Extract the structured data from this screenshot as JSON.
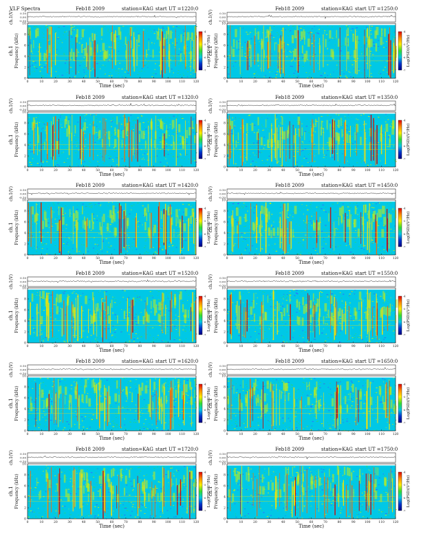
{
  "labels": {
    "titles": [
      "VLF Spectra",
      "",
      "",
      "",
      "",
      "",
      "",
      "",
      "",
      "",
      "",
      ""
    ],
    "dates": [
      "Feb18 2009",
      "Feb18 2009",
      "Feb18 2009",
      "Feb18 2009",
      "Feb18 2009",
      "Feb18 2009",
      "Feb18 2009",
      "Feb18 2009",
      "Feb18 2009",
      "Feb18 2009",
      "Feb18 2009",
      "Feb18 2009"
    ],
    "stations": [
      "station=KAG",
      "station=KAG",
      "station=KAG",
      "station=KAG",
      "station=KAG",
      "station=KAG",
      "station=KAG",
      "station=KAG",
      "station=KAG",
      "station=KAG",
      "station=KAG",
      "station=KAG"
    ],
    "starts": [
      "start UT =1220:0",
      "start UT =1250:0",
      "start UT =1320:0",
      "start UT =1350:0",
      "start UT =1420:0",
      "start UT =1450:0",
      "start UT =1520:0",
      "start UT =1550:0",
      "start UT =1620:0",
      "start UT =1650:0",
      "start UT =1720:0",
      "start UT =1750:0"
    ],
    "ts_ylabel": "ch.1(V)",
    "ts_ticks": [
      "0.10",
      "0.00",
      "-0.10"
    ],
    "spec_ylabel_1": "ch.1",
    "spec_ylabel_2": "Frequency (kHz)",
    "colorbar_label": "Log(PSD)(V²/Hz)",
    "colorbar_ticks": [
      "-4",
      "-5",
      "-6",
      "-7"
    ]
  },
  "colors": {
    "background": "#00c8e6",
    "noise": "#22d488",
    "mid": "#c8ee10",
    "high": "#ffe000",
    "peak": "#ff6600",
    "max": "#d40000",
    "low": "#3366ff",
    "colorbar": [
      "#e00000",
      "#ff8c00",
      "#ffee00",
      "#33dd33",
      "#00c8e6",
      "#0033cc",
      "#000080"
    ]
  },
  "chart_data": [
    {
      "type": "heatmap",
      "station": "KAG",
      "date": "Feb18 2009",
      "start_ut": "1220:0",
      "xlim": [
        0,
        120
      ],
      "ylim": [
        0,
        10
      ],
      "xlabel": "Time (sec)",
      "ylabel": "Frequency (kHz)",
      "xticks": [
        0,
        10,
        20,
        30,
        40,
        50,
        60,
        70,
        80,
        90,
        100,
        110,
        120
      ],
      "yticks": [
        0,
        2,
        4,
        6,
        8,
        10
      ],
      "ts_ylim": [
        -0.1,
        0.1
      ],
      "colorbar_range": [
        -7,
        -4
      ]
    },
    {
      "type": "heatmap",
      "station": "KAG",
      "date": "Feb18 2009",
      "start_ut": "1250:0",
      "xlim": [
        0,
        120
      ],
      "ylim": [
        0,
        10
      ],
      "xlabel": "Time (sec)",
      "ylabel": "Frequency (kHz)",
      "xticks": [
        0,
        10,
        20,
        30,
        40,
        50,
        60,
        70,
        80,
        90,
        100,
        110,
        120
      ],
      "yticks": [
        0,
        2,
        4,
        6,
        8,
        10
      ],
      "ts_ylim": [
        -0.1,
        0.1
      ],
      "colorbar_range": [
        -7,
        -4
      ]
    },
    {
      "type": "heatmap",
      "station": "KAG",
      "date": "Feb18 2009",
      "start_ut": "1320:0",
      "xlim": [
        0,
        120
      ],
      "ylim": [
        0,
        10
      ],
      "xlabel": "Time (sec)",
      "ylabel": "Frequency (kHz)",
      "xticks": [
        0,
        10,
        20,
        30,
        40,
        50,
        60,
        70,
        80,
        90,
        100,
        110,
        120
      ],
      "yticks": [
        0,
        2,
        4,
        6,
        8,
        10
      ],
      "ts_ylim": [
        -0.1,
        0.1
      ],
      "colorbar_range": [
        -7,
        -4
      ]
    },
    {
      "type": "heatmap",
      "station": "KAG",
      "date": "Feb18 2009",
      "start_ut": "1350:0",
      "xlim": [
        0,
        120
      ],
      "ylim": [
        0,
        10
      ],
      "xlabel": "Time (sec)",
      "ylabel": "Frequency (kHz)",
      "xticks": [
        0,
        10,
        20,
        30,
        40,
        50,
        60,
        70,
        80,
        90,
        100,
        110,
        120
      ],
      "yticks": [
        0,
        2,
        4,
        6,
        8,
        10
      ],
      "ts_ylim": [
        -0.1,
        0.1
      ],
      "colorbar_range": [
        -7,
        -4
      ]
    },
    {
      "type": "heatmap",
      "station": "KAG",
      "date": "Feb18 2009",
      "start_ut": "1420:0",
      "xlim": [
        0,
        120
      ],
      "ylim": [
        0,
        10
      ],
      "xlabel": "Time (sec)",
      "ylabel": "Frequency (kHz)",
      "xticks": [
        0,
        10,
        20,
        30,
        40,
        50,
        60,
        70,
        80,
        90,
        100,
        110,
        120
      ],
      "yticks": [
        0,
        2,
        4,
        6,
        8,
        10
      ],
      "ts_ylim": [
        -0.1,
        0.1
      ],
      "colorbar_range": [
        -7,
        -4
      ]
    },
    {
      "type": "heatmap",
      "station": "KAG",
      "date": "Feb18 2009",
      "start_ut": "1450:0",
      "xlim": [
        0,
        120
      ],
      "ylim": [
        0,
        10
      ],
      "xlabel": "Time (sec)",
      "ylabel": "Frequency (kHz)",
      "xticks": [
        0,
        10,
        20,
        30,
        40,
        50,
        60,
        70,
        80,
        90,
        100,
        110,
        120
      ],
      "yticks": [
        0,
        2,
        4,
        6,
        8,
        10
      ],
      "ts_ylim": [
        -0.1,
        0.1
      ],
      "colorbar_range": [
        -7,
        -4
      ]
    },
    {
      "type": "heatmap",
      "station": "KAG",
      "date": "Feb18 2009",
      "start_ut": "1520:0",
      "xlim": [
        0,
        120
      ],
      "ylim": [
        0,
        10
      ],
      "xlabel": "Time (sec)",
      "ylabel": "Frequency (kHz)",
      "xticks": [
        0,
        10,
        20,
        30,
        40,
        50,
        60,
        70,
        80,
        90,
        100,
        110,
        120
      ],
      "yticks": [
        0,
        2,
        4,
        6,
        8,
        10
      ],
      "ts_ylim": [
        -0.1,
        0.1
      ],
      "colorbar_range": [
        -7,
        -4
      ]
    },
    {
      "type": "heatmap",
      "station": "KAG",
      "date": "Feb18 2009",
      "start_ut": "1550:0",
      "xlim": [
        0,
        120
      ],
      "ylim": [
        0,
        10
      ],
      "xlabel": "Time (sec)",
      "ylabel": "Frequency (kHz)",
      "xticks": [
        0,
        10,
        20,
        30,
        40,
        50,
        60,
        70,
        80,
        90,
        100,
        110,
        120
      ],
      "yticks": [
        0,
        2,
        4,
        6,
        8,
        10
      ],
      "ts_ylim": [
        -0.1,
        0.1
      ],
      "colorbar_range": [
        -7,
        -4
      ]
    },
    {
      "type": "heatmap",
      "station": "KAG",
      "date": "Feb18 2009",
      "start_ut": "1620:0",
      "xlim": [
        0,
        120
      ],
      "ylim": [
        0,
        10
      ],
      "xlabel": "Time (sec)",
      "ylabel": "Frequency (kHz)",
      "xticks": [
        0,
        10,
        20,
        30,
        40,
        50,
        60,
        70,
        80,
        90,
        100,
        110,
        120
      ],
      "yticks": [
        0,
        2,
        4,
        6,
        8,
        10
      ],
      "ts_ylim": [
        -0.1,
        0.1
      ],
      "colorbar_range": [
        -7,
        -4
      ]
    },
    {
      "type": "heatmap",
      "station": "KAG",
      "date": "Feb18 2009",
      "start_ut": "1650:0",
      "xlim": [
        0,
        120
      ],
      "ylim": [
        0,
        10
      ],
      "xlabel": "Time (sec)",
      "ylabel": "Frequency (kHz)",
      "xticks": [
        0,
        10,
        20,
        30,
        40,
        50,
        60,
        70,
        80,
        90,
        100,
        110,
        120
      ],
      "yticks": [
        0,
        2,
        4,
        6,
        8,
        10
      ],
      "ts_ylim": [
        -0.1,
        0.1
      ],
      "colorbar_range": [
        -7,
        -4
      ]
    },
    {
      "type": "heatmap",
      "station": "KAG",
      "date": "Feb18 2009",
      "start_ut": "1720:0",
      "xlim": [
        0,
        120
      ],
      "ylim": [
        0,
        10
      ],
      "xlabel": "Time (sec)",
      "ylabel": "Frequency (kHz)",
      "xticks": [
        0,
        10,
        20,
        30,
        40,
        50,
        60,
        70,
        80,
        90,
        100,
        110,
        120
      ],
      "yticks": [
        0,
        2,
        4,
        6,
        8,
        10
      ],
      "ts_ylim": [
        -0.1,
        0.1
      ],
      "colorbar_range": [
        -7,
        -4
      ]
    },
    {
      "type": "heatmap",
      "station": "KAG",
      "date": "Feb18 2009",
      "start_ut": "1750:0",
      "xlim": [
        0,
        120
      ],
      "ylim": [
        0,
        10
      ],
      "xlabel": "Time (sec)",
      "ylabel": "Frequency (kHz)",
      "xticks": [
        0,
        10,
        20,
        30,
        40,
        50,
        60,
        70,
        80,
        90,
        100,
        110,
        120
      ],
      "yticks": [
        0,
        2,
        4,
        6,
        8,
        10
      ],
      "ts_ylim": [
        -0.1,
        0.1
      ],
      "colorbar_range": [
        -7,
        -4
      ]
    }
  ]
}
